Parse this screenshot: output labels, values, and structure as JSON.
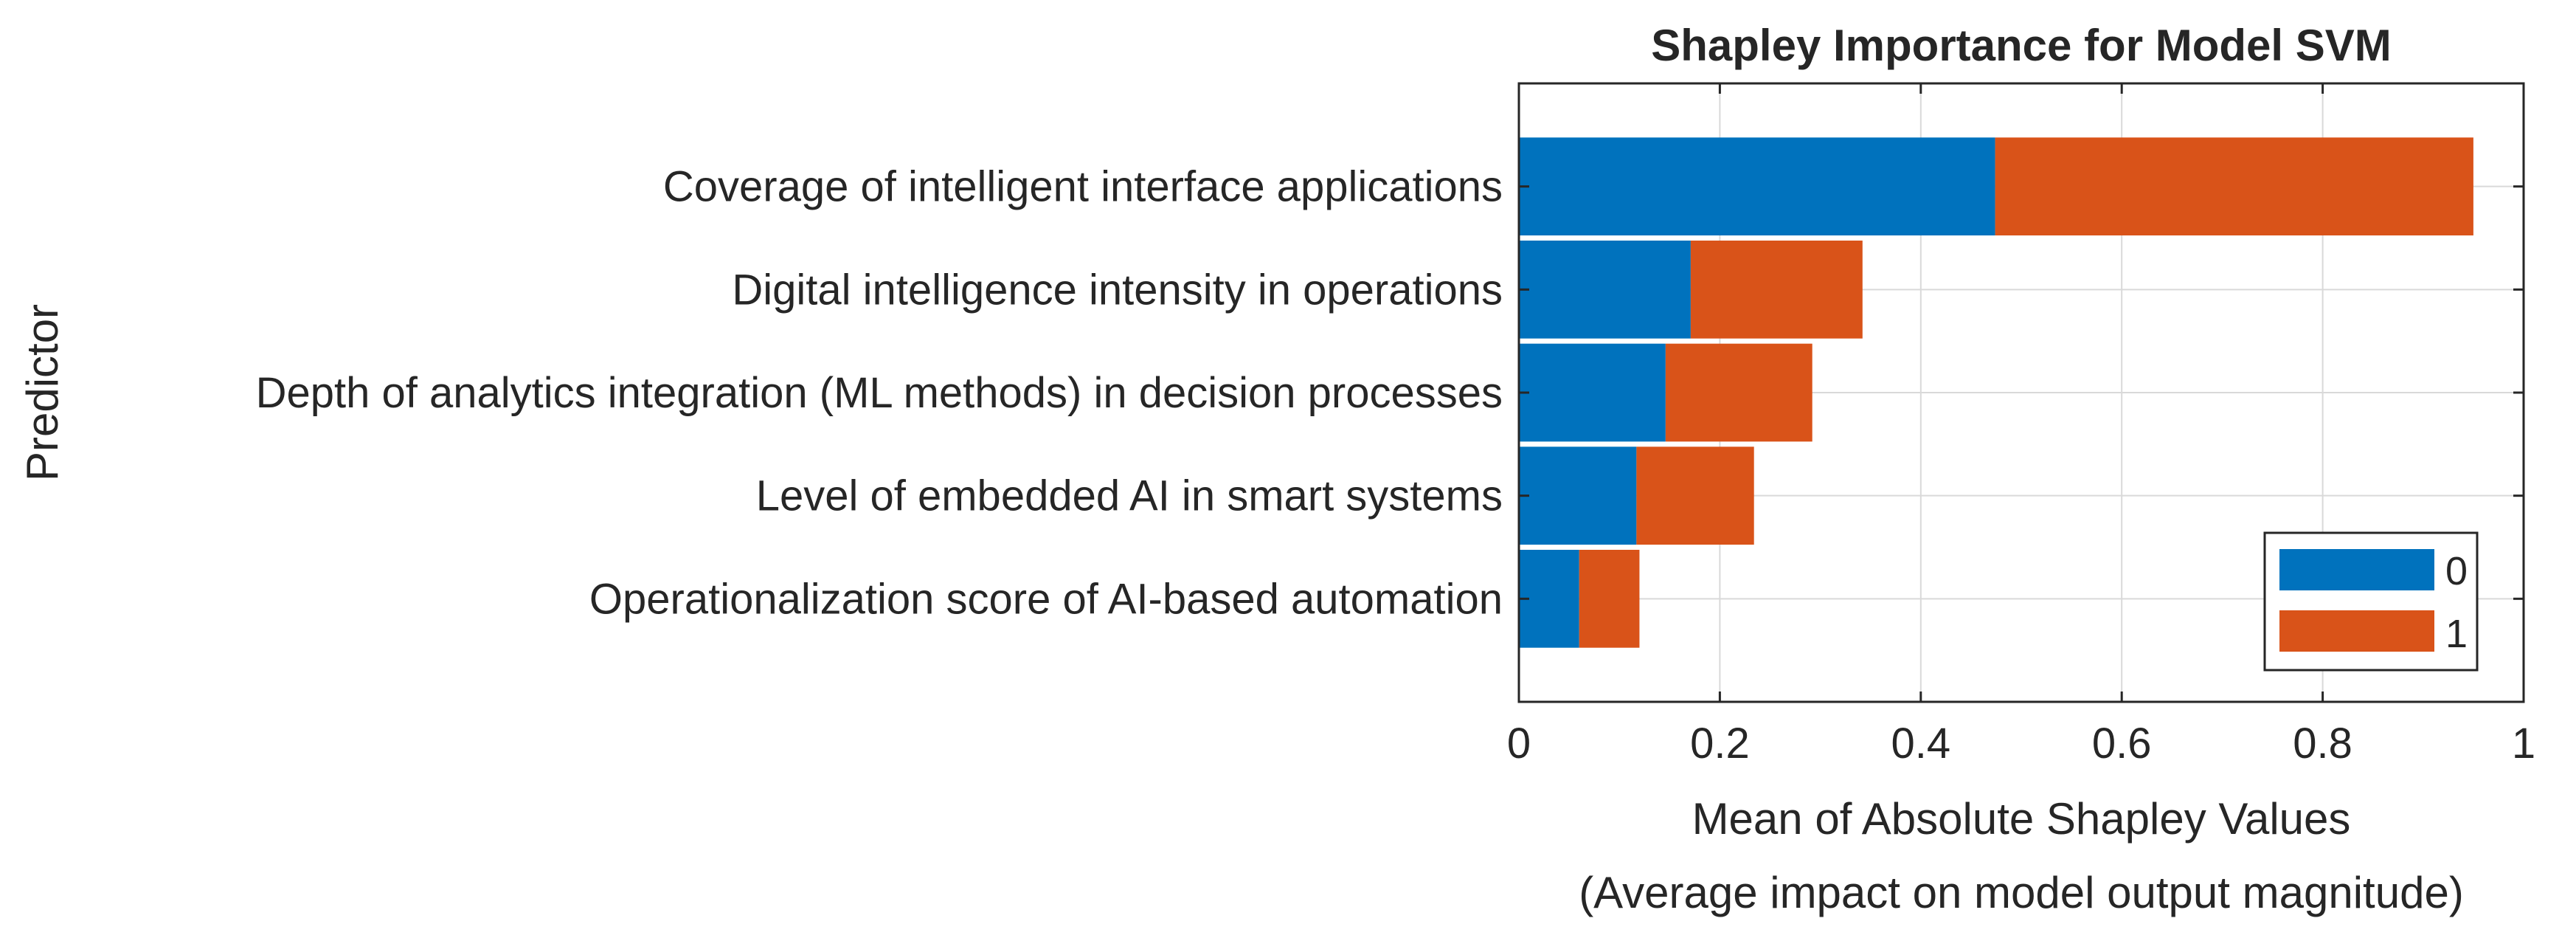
{
  "chart_data": {
    "type": "bar",
    "orientation": "horizontal",
    "stacked": true,
    "title": "Shapley Importance for Model SVM",
    "xlabel": [
      "Mean of Absolute Shapley Values",
      "(Average impact on model output magnitude)"
    ],
    "ylabel": "Predictor",
    "xlim": [
      0,
      1
    ],
    "xticks": [
      0,
      0.2,
      0.4,
      0.6,
      0.8,
      1
    ],
    "xtick_labels": [
      "0",
      "0.2",
      "0.4",
      "0.6",
      "0.8",
      "1"
    ],
    "grid": true,
    "legend_position": "bottom-right",
    "categories": [
      "Coverage of intelligent interface applications",
      "Digital intelligence intensity in operations",
      "Depth of analytics integration (ML methods) in decision processes",
      "Level of embedded AI in smart systems",
      "Operationalization score of AI-based automation"
    ],
    "series": [
      {
        "name": "0",
        "color": "#0072BD",
        "values": [
          0.474,
          0.171,
          0.146,
          0.117,
          0.06
        ]
      },
      {
        "name": "1",
        "color": "#D95319",
        "values": [
          0.476,
          0.171,
          0.146,
          0.117,
          0.06
        ]
      }
    ]
  }
}
